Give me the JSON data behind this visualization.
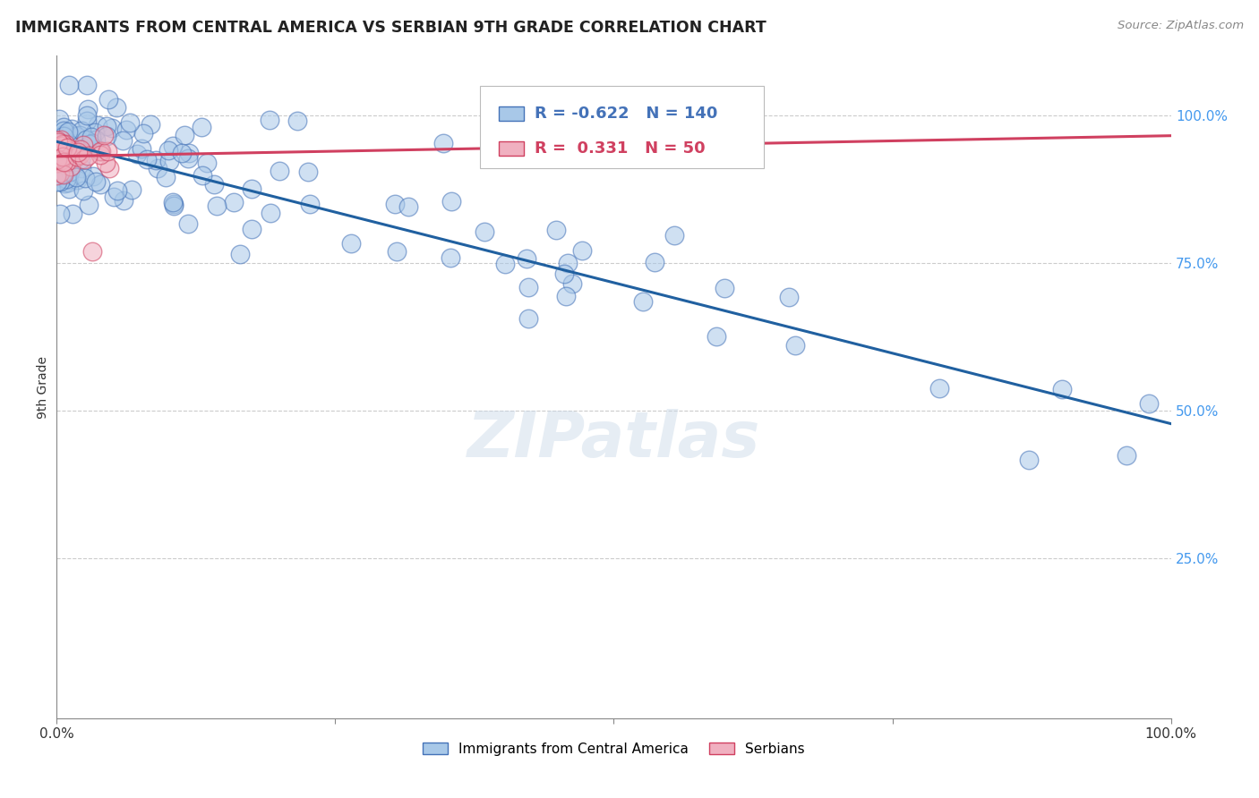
{
  "title": "IMMIGRANTS FROM CENTRAL AMERICA VS SERBIAN 9TH GRADE CORRELATION CHART",
  "source": "Source: ZipAtlas.com",
  "ylabel": "9th Grade",
  "watermark": "ZIPatlas",
  "blue_R": -0.622,
  "blue_N": 140,
  "pink_R": 0.331,
  "pink_N": 50,
  "ytick_labels": [
    "100.0%",
    "75.0%",
    "50.0%",
    "25.0%"
  ],
  "ytick_positions": [
    1.0,
    0.75,
    0.5,
    0.25
  ],
  "blue_fill": "#a8c8e8",
  "blue_edge": "#4472b8",
  "pink_fill": "#f0b0c0",
  "pink_edge": "#d04060",
  "pink_line_color": "#d04060",
  "blue_line_color": "#2060a0",
  "legend_blue_label": "Immigrants from Central America",
  "legend_pink_label": "Serbians",
  "blue_trend_x": [
    0.0,
    1.0
  ],
  "blue_trend_y": [
    0.955,
    0.478
  ],
  "pink_trend_x": [
    0.0,
    1.0
  ],
  "pink_trend_y": [
    0.93,
    0.965
  ],
  "xlim": [
    0.0,
    1.0
  ],
  "ylim": [
    -0.02,
    1.1
  ],
  "grid_color": "#cccccc",
  "right_tick_color": "#4499ee",
  "source_color": "#888888",
  "axis_color": "#888888"
}
